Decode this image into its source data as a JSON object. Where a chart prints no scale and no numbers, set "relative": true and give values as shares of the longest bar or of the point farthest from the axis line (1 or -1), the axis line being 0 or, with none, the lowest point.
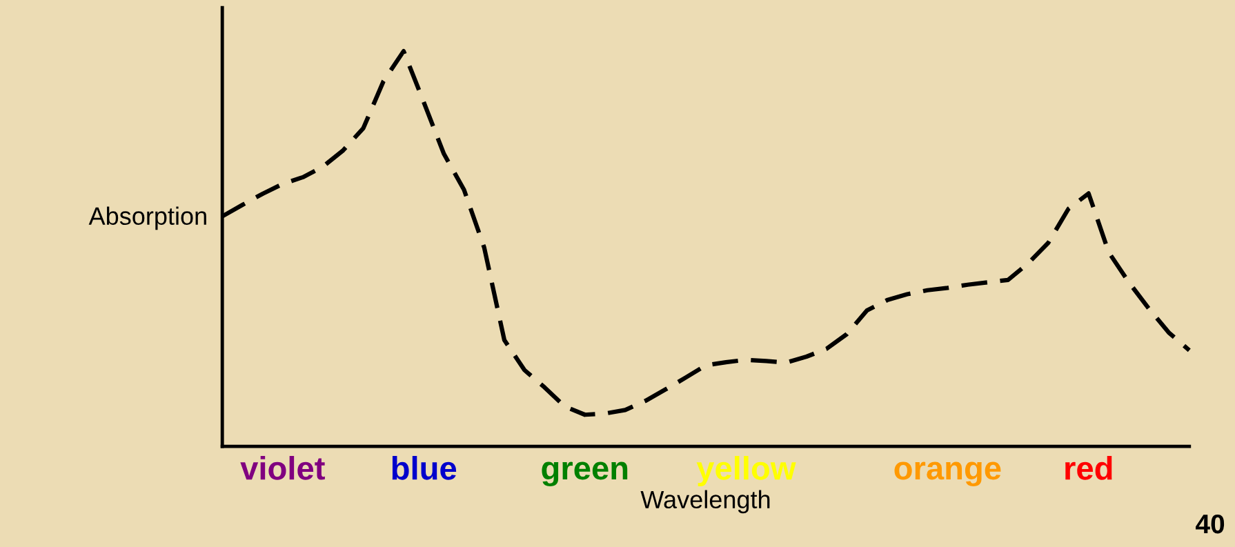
{
  "chart_data": {
    "type": "line",
    "relative": true,
    "xlabel": "Wavelength",
    "ylabel": "Absorption",
    "categories": [
      null,
      null,
      null,
      "violet",
      null,
      null,
      null,
      null,
      null,
      null,
      "blue",
      null,
      null,
      null,
      null,
      null,
      null,
      null,
      "green",
      null,
      null,
      null,
      null,
      null,
      null,
      null,
      "yellow",
      null,
      null,
      null,
      null,
      null,
      null,
      null,
      null,
      null,
      "orange",
      null,
      null,
      null,
      null,
      null,
      null,
      "red",
      null,
      null,
      null,
      null,
      null
    ],
    "grid": false,
    "legend": false,
    "marker": "none",
    "line_style": "dashed",
    "annotations": [
      "40"
    ],
    "series": [
      {
        "color": "#000000",
        "values": [
          0.582,
          0.611,
          0.639,
          0.664,
          0.681,
          0.708,
          0.749,
          0.805,
          0.924,
          1.0,
          0.871,
          0.74,
          0.649,
          0.503,
          0.269,
          0.193,
          0.149,
          0.101,
          0.08,
          0.083,
          0.092,
          0.115,
          0.144,
          0.174,
          0.205,
          0.213,
          0.219,
          0.216,
          0.212,
          0.227,
          0.247,
          0.284,
          0.344,
          0.37,
          0.385,
          0.395,
          0.401,
          0.409,
          0.415,
          0.421,
          0.463,
          0.515,
          0.601,
          0.64,
          0.491,
          0.415,
          0.348,
          0.287,
          0.243
        ]
      }
    ]
  }
}
